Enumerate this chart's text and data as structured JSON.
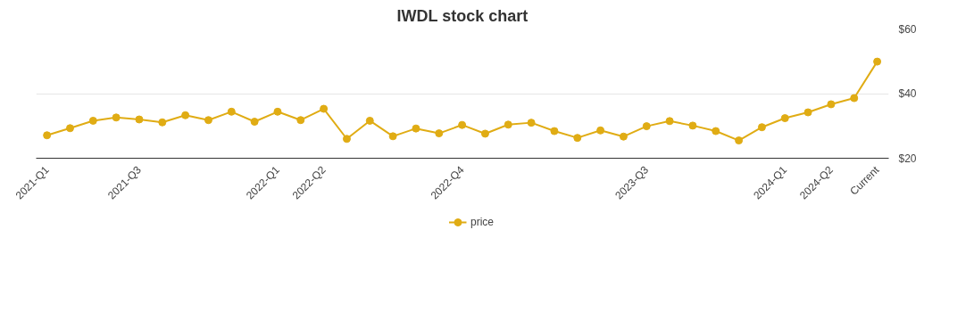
{
  "chart_data": {
    "type": "line",
    "title": "IWDL stock chart",
    "categories": [
      "2021-Q1",
      null,
      null,
      null,
      "2021-Q3",
      null,
      null,
      null,
      null,
      null,
      "2022-Q1",
      null,
      "2022-Q2",
      null,
      null,
      null,
      null,
      null,
      "2022-Q4",
      null,
      null,
      null,
      null,
      null,
      null,
      null,
      "2023-Q3",
      null,
      null,
      null,
      null,
      null,
      "2024-Q1",
      null,
      "2024-Q2",
      null,
      "Current"
    ],
    "series": [
      {
        "name": "price",
        "color": "#e0ac14",
        "values": [
          27.1,
          29.3,
          31.6,
          32.6,
          32.0,
          31.1,
          33.3,
          31.8,
          34.4,
          31.3,
          34.4,
          31.8,
          35.3,
          26.0,
          31.6,
          26.8,
          29.2,
          27.7,
          30.3,
          27.6,
          30.4,
          31.0,
          28.4,
          26.3,
          28.6,
          26.7,
          29.9,
          31.5,
          30.1,
          28.4,
          25.5,
          29.6,
          32.4,
          34.2,
          36.7,
          38.6,
          49.9
        ]
      }
    ],
    "ylim": [
      20,
      60
    ],
    "yticks": [
      {
        "value": 20,
        "label": "$20"
      },
      {
        "value": 40,
        "label": "$40"
      },
      {
        "value": 60,
        "label": "$60"
      }
    ],
    "grid": "y",
    "legend": "bottom",
    "marker": "circle",
    "line_style": "solid"
  }
}
